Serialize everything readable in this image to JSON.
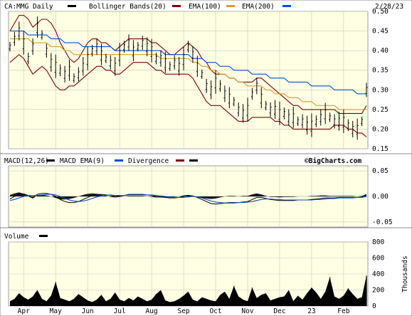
{
  "chart_data": [
    {
      "type": "line",
      "panel": "price",
      "title_ticker": "CA:MMG Daily",
      "date_label": "2/28/23",
      "legend": [
        {
          "name": "Bollinger Bands(20)",
          "color": "#800000"
        },
        {
          "name": "EMA(100)",
          "color": "#d89b30"
        },
        {
          "name": "EMA(200)",
          "color": "#0050d0"
        }
      ],
      "y_ticks": [
        "0.50",
        "0.45",
        "0.40",
        "0.35",
        "0.30",
        "0.25",
        "0.20",
        "0.15"
      ],
      "ylim": [
        0.15,
        0.5
      ],
      "series": [
        {
          "name": "Price",
          "values": [
            0.41,
            0.43,
            0.45,
            0.42,
            0.38,
            0.41,
            0.46,
            0.44,
            0.4,
            0.37,
            0.36,
            0.35,
            0.34,
            0.35,
            0.33,
            0.34,
            0.36,
            0.38,
            0.4,
            0.41,
            0.39,
            0.38,
            0.37,
            0.36,
            0.39,
            0.41,
            0.42,
            0.4,
            0.41,
            0.42,
            0.41,
            0.4,
            0.38,
            0.38,
            0.37,
            0.36,
            0.37,
            0.36,
            0.38,
            0.41,
            0.39,
            0.36,
            0.34,
            0.31,
            0.3,
            0.32,
            0.31,
            0.29,
            0.28,
            0.27,
            0.25,
            0.24,
            0.25,
            0.29,
            0.31,
            0.28,
            0.26,
            0.25,
            0.25,
            0.24,
            0.24,
            0.23,
            0.23,
            0.22,
            0.22,
            0.21,
            0.21,
            0.22,
            0.23,
            0.24,
            0.23,
            0.22,
            0.22,
            0.22,
            0.21,
            0.2,
            0.2,
            0.22,
            0.3
          ]
        },
        {
          "name": "Bollinger Upper",
          "values": [
            0.45,
            0.47,
            0.49,
            0.49,
            0.48,
            0.46,
            0.47,
            0.48,
            0.48,
            0.47,
            0.45,
            0.42,
            0.4,
            0.38,
            0.37,
            0.38,
            0.4,
            0.42,
            0.43,
            0.43,
            0.42,
            0.42,
            0.41,
            0.4,
            0.41,
            0.42,
            0.43,
            0.43,
            0.43,
            0.43,
            0.43,
            0.42,
            0.42,
            0.41,
            0.4,
            0.39,
            0.39,
            0.4,
            0.41,
            0.42,
            0.41,
            0.4,
            0.38,
            0.37,
            0.35,
            0.34,
            0.34,
            0.34,
            0.33,
            0.33,
            0.32,
            0.32,
            0.32,
            0.32,
            0.33,
            0.33,
            0.32,
            0.31,
            0.3,
            0.29,
            0.28,
            0.27,
            0.26,
            0.26,
            0.25,
            0.25,
            0.25,
            0.25,
            0.25,
            0.25,
            0.25,
            0.25,
            0.24,
            0.24,
            0.24,
            0.24,
            0.24,
            0.24,
            0.26
          ]
        },
        {
          "name": "Bollinger Lower",
          "values": [
            0.37,
            0.38,
            0.39,
            0.38,
            0.36,
            0.34,
            0.35,
            0.36,
            0.35,
            0.33,
            0.31,
            0.3,
            0.3,
            0.31,
            0.31,
            0.32,
            0.33,
            0.34,
            0.35,
            0.36,
            0.36,
            0.35,
            0.35,
            0.34,
            0.34,
            0.35,
            0.36,
            0.37,
            0.37,
            0.37,
            0.37,
            0.36,
            0.35,
            0.35,
            0.34,
            0.34,
            0.34,
            0.34,
            0.34,
            0.34,
            0.33,
            0.31,
            0.29,
            0.27,
            0.26,
            0.26,
            0.26,
            0.25,
            0.24,
            0.23,
            0.22,
            0.22,
            0.22,
            0.23,
            0.23,
            0.23,
            0.23,
            0.23,
            0.22,
            0.22,
            0.21,
            0.21,
            0.2,
            0.2,
            0.2,
            0.2,
            0.2,
            0.2,
            0.2,
            0.2,
            0.2,
            0.21,
            0.21,
            0.21,
            0.2,
            0.2,
            0.19,
            0.19,
            0.18
          ]
        },
        {
          "name": "EMA(100)",
          "values": [
            0.43,
            0.43,
            0.43,
            0.43,
            0.43,
            0.42,
            0.42,
            0.42,
            0.42,
            0.41,
            0.41,
            0.41,
            0.4,
            0.4,
            0.39,
            0.39,
            0.39,
            0.39,
            0.39,
            0.39,
            0.39,
            0.39,
            0.39,
            0.39,
            0.39,
            0.39,
            0.39,
            0.39,
            0.39,
            0.39,
            0.39,
            0.39,
            0.39,
            0.38,
            0.38,
            0.38,
            0.38,
            0.38,
            0.38,
            0.38,
            0.37,
            0.37,
            0.36,
            0.36,
            0.35,
            0.35,
            0.34,
            0.34,
            0.33,
            0.33,
            0.32,
            0.32,
            0.31,
            0.31,
            0.31,
            0.31,
            0.3,
            0.3,
            0.29,
            0.29,
            0.29,
            0.28,
            0.28,
            0.28,
            0.27,
            0.27,
            0.27,
            0.26,
            0.26,
            0.26,
            0.26,
            0.26,
            0.25,
            0.25,
            0.25,
            0.25,
            0.25,
            0.25,
            0.25
          ]
        },
        {
          "name": "EMA(200)",
          "values": [
            0.45,
            0.45,
            0.45,
            0.45,
            0.44,
            0.44,
            0.44,
            0.44,
            0.44,
            0.43,
            0.43,
            0.43,
            0.42,
            0.42,
            0.42,
            0.42,
            0.41,
            0.41,
            0.41,
            0.41,
            0.41,
            0.41,
            0.41,
            0.4,
            0.4,
            0.4,
            0.4,
            0.4,
            0.4,
            0.4,
            0.4,
            0.4,
            0.4,
            0.4,
            0.39,
            0.39,
            0.39,
            0.39,
            0.39,
            0.39,
            0.38,
            0.38,
            0.38,
            0.37,
            0.37,
            0.37,
            0.36,
            0.36,
            0.36,
            0.35,
            0.35,
            0.35,
            0.35,
            0.34,
            0.34,
            0.34,
            0.34,
            0.33,
            0.33,
            0.33,
            0.33,
            0.32,
            0.32,
            0.32,
            0.32,
            0.32,
            0.31,
            0.31,
            0.31,
            0.31,
            0.31,
            0.3,
            0.3,
            0.3,
            0.3,
            0.3,
            0.29,
            0.29,
            0.29
          ]
        }
      ]
    },
    {
      "type": "line",
      "panel": "macd",
      "legend": [
        {
          "name": "MACD(12,26)",
          "color": "#000000"
        },
        {
          "name": "MACD EMA(9)",
          "color": "#0050d0"
        },
        {
          "name": "Divergence",
          "color": "#800000"
        }
      ],
      "extra_legend_swatch": "#000000",
      "watermark": "©BigCharts.com",
      "y_ticks": [
        "0.05",
        "0.00",
        "-0.05"
      ],
      "ylim": [
        -0.06,
        0.06
      ],
      "series": [
        {
          "name": "MACD",
          "values": [
            -0.005,
            0.0,
            0.005,
            0.005,
            0.002,
            -0.002,
            0.004,
            0.006,
            0.006,
            0.004,
            0.0,
            -0.006,
            -0.01,
            -0.012,
            -0.012,
            -0.01,
            -0.006,
            -0.002,
            0.002,
            0.004,
            0.004,
            0.003,
            0.002,
            0.0,
            0.001,
            0.002,
            0.004,
            0.004,
            0.004,
            0.004,
            0.003,
            0.002,
            0.0,
            -0.001,
            -0.002,
            -0.003,
            -0.003,
            -0.002,
            0.0,
            0.002,
            0.001,
            -0.002,
            -0.006,
            -0.01,
            -0.014,
            -0.015,
            -0.014,
            -0.013,
            -0.012,
            -0.012,
            -0.012,
            -0.011,
            -0.01,
            -0.006,
            -0.002,
            -0.002,
            -0.004,
            -0.006,
            -0.007,
            -0.008,
            -0.008,
            -0.008,
            -0.008,
            -0.007,
            -0.007,
            -0.007,
            -0.006,
            -0.005,
            -0.004,
            -0.003,
            -0.003,
            -0.003,
            -0.002,
            -0.002,
            -0.002,
            -0.002,
            -0.002,
            -0.001,
            0.004
          ]
        },
        {
          "name": "MACD EMA(9)",
          "values": [
            -0.008,
            -0.006,
            -0.003,
            0.0,
            0.002,
            0.002,
            0.002,
            0.003,
            0.004,
            0.004,
            0.003,
            0.0,
            -0.004,
            -0.007,
            -0.009,
            -0.01,
            -0.009,
            -0.007,
            -0.004,
            -0.001,
            0.001,
            0.002,
            0.003,
            0.002,
            0.002,
            0.002,
            0.003,
            0.003,
            0.003,
            0.003,
            0.003,
            0.003,
            0.002,
            0.001,
            0.0,
            -0.001,
            -0.002,
            -0.002,
            -0.002,
            -0.001,
            0.0,
            -0.001,
            -0.003,
            -0.006,
            -0.009,
            -0.011,
            -0.012,
            -0.013,
            -0.013,
            -0.013,
            -0.012,
            -0.012,
            -0.011,
            -0.01,
            -0.008,
            -0.006,
            -0.005,
            -0.005,
            -0.006,
            -0.006,
            -0.007,
            -0.007,
            -0.007,
            -0.007,
            -0.007,
            -0.007,
            -0.007,
            -0.006,
            -0.006,
            -0.005,
            -0.004,
            -0.004,
            -0.003,
            -0.003,
            -0.003,
            -0.003,
            -0.002,
            -0.002,
            0.0
          ]
        }
      ]
    },
    {
      "type": "bar",
      "panel": "volume",
      "legend": [
        {
          "name": "Volume",
          "color": "#000000"
        }
      ],
      "y_ticks": [
        "800",
        "600",
        "400",
        "200",
        "0"
      ],
      "ylabel": "Thousands",
      "ylim": [
        0,
        800
      ],
      "values": [
        60,
        90,
        160,
        110,
        80,
        120,
        200,
        90,
        60,
        130,
        300,
        100,
        80,
        60,
        90,
        150,
        110,
        70,
        50,
        80,
        140,
        60,
        90,
        170,
        80,
        60,
        100,
        70,
        120,
        90,
        60,
        80,
        150,
        200,
        70,
        50,
        60,
        90,
        130,
        180,
        80,
        60,
        110,
        90,
        70,
        60,
        140,
        180,
        90,
        250,
        120,
        80,
        60,
        230,
        100,
        140,
        160,
        70,
        90,
        110,
        120,
        200,
        60,
        130,
        80,
        160,
        230,
        170,
        90,
        180,
        360,
        120,
        90,
        130,
        220,
        150,
        90,
        110,
        380
      ],
      "x_labels": [
        "Apr",
        "May",
        "Jun",
        "Jul",
        "Aug",
        "Sep",
        "Oct",
        "Nov",
        "Dec",
        "23",
        "Feb"
      ]
    }
  ]
}
